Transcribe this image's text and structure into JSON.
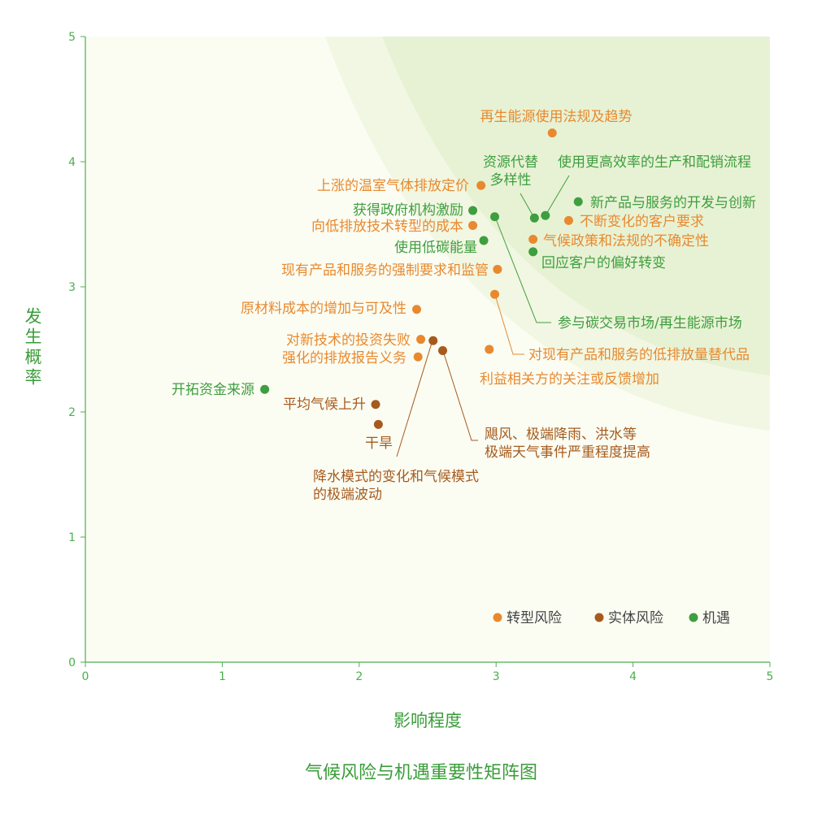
{
  "chart_data": {
    "type": "scatter",
    "title": "气候风险与机遇重要性矩阵图",
    "xlabel": "影响程度",
    "ylabel": "发生概率",
    "xlim": [
      0,
      5
    ],
    "ylim": [
      0,
      5
    ],
    "xticks": [
      "0",
      "1",
      "2",
      "3",
      "4",
      "5"
    ],
    "yticks": [
      "0",
      "1",
      "2",
      "3",
      "4",
      "5"
    ],
    "grid": false,
    "legend_position": "bottom-right",
    "colors": {
      "transition": "#e8892f",
      "physical": "#a65a1e",
      "opportunity": "#3f9e3f",
      "axis": "#4caf50"
    },
    "series": [
      {
        "name": "转型风险",
        "key": "transition",
        "points": [
          {
            "label": "再生能源使用法规及趋势",
            "x": 3.41,
            "y": 4.23
          },
          {
            "label": "上涨的温室气体排放定价",
            "x": 2.89,
            "y": 3.81
          },
          {
            "label": "向低排放技术转型的成本",
            "x": 2.83,
            "y": 3.49
          },
          {
            "label": "不断变化的客户要求",
            "x": 3.53,
            "y": 3.53
          },
          {
            "label": "气候政策和法规的不确定性",
            "x": 3.27,
            "y": 3.38
          },
          {
            "label": "现有产品和服务的强制要求和监管",
            "x": 3.01,
            "y": 3.14
          },
          {
            "label": "对现有产品和服务的低排放量替代品",
            "x": 2.99,
            "y": 2.94
          },
          {
            "label": "原材料成本的增加与可及性",
            "x": 2.42,
            "y": 2.82
          },
          {
            "label": "对新技术的投资失败",
            "x": 2.45,
            "y": 2.58
          },
          {
            "label": "强化的排放报告义务",
            "x": 2.43,
            "y": 2.44
          },
          {
            "label": "利益相关方的关注或反馈增加",
            "x": 2.95,
            "y": 2.5
          }
        ]
      },
      {
        "name": "实体风险",
        "key": "physical",
        "points": [
          {
            "label": "降水模式的变化和气候模式|的极端波动",
            "x": 2.54,
            "y": 2.57
          },
          {
            "label": "飓风、极端降雨、洪水等|极端天气事件严重程度提高",
            "x": 2.61,
            "y": 2.49
          },
          {
            "label": "平均气候上升",
            "x": 2.12,
            "y": 2.06
          },
          {
            "label": "干旱",
            "x": 2.14,
            "y": 1.9
          }
        ]
      },
      {
        "name": "机遇",
        "key": "opportunity",
        "points": [
          {
            "label": "资源代替|多样性",
            "x": 3.28,
            "y": 3.55
          },
          {
            "label": "使用更高效率的生产和配销流程",
            "x": 3.36,
            "y": 3.57
          },
          {
            "label": "新产品与服务的开发与创新",
            "x": 3.6,
            "y": 3.68
          },
          {
            "label": "获得政府机构激励",
            "x": 2.83,
            "y": 3.61
          },
          {
            "label": "参与碳交易市场/再生能源市场",
            "x": 2.99,
            "y": 3.56
          },
          {
            "label": "使用低碳能量",
            "x": 2.91,
            "y": 3.37
          },
          {
            "label": "回应客户的偏好转变",
            "x": 3.27,
            "y": 3.28
          },
          {
            "label": "开拓资金来源",
            "x": 1.31,
            "y": 2.18
          }
        ]
      }
    ]
  }
}
